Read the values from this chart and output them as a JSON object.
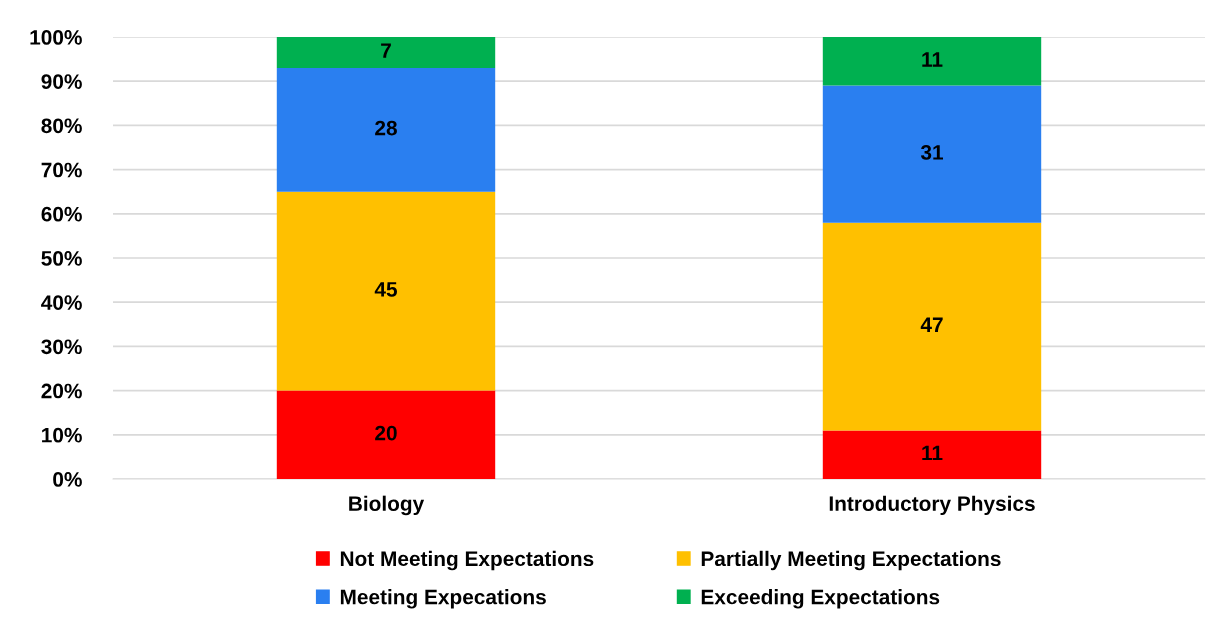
{
  "chart_data": {
    "type": "bar",
    "stacked": true,
    "categories": [
      "Biology",
      "Introductory Physics"
    ],
    "series": [
      {
        "name": "Not Meeting Expectations",
        "color": "#ff0000",
        "values": [
          20,
          11
        ]
      },
      {
        "name": "Partially Meeting Expectations",
        "color": "#ffc000",
        "values": [
          45,
          47
        ]
      },
      {
        "name": "Meeting Expecations",
        "color": "#2a7ff0",
        "values": [
          28,
          31
        ]
      },
      {
        "name": "Exceeding Expectations",
        "color": "#00b050",
        "values": [
          7,
          11
        ]
      }
    ],
    "ylim": [
      0,
      100
    ],
    "yticks": [
      {
        "value": 0,
        "label": "0%"
      },
      {
        "value": 10,
        "label": "10%"
      },
      {
        "value": 20,
        "label": "20%"
      },
      {
        "value": 30,
        "label": "30%"
      },
      {
        "value": 40,
        "label": "40%"
      },
      {
        "value": 50,
        "label": "50%"
      },
      {
        "value": 60,
        "label": "60%"
      },
      {
        "value": 70,
        "label": "70%"
      },
      {
        "value": 80,
        "label": "80%"
      },
      {
        "value": 90,
        "label": "90%"
      },
      {
        "value": 100,
        "label": "100%"
      }
    ],
    "grid": "y",
    "data_labels": true,
    "legend": "bottom"
  }
}
